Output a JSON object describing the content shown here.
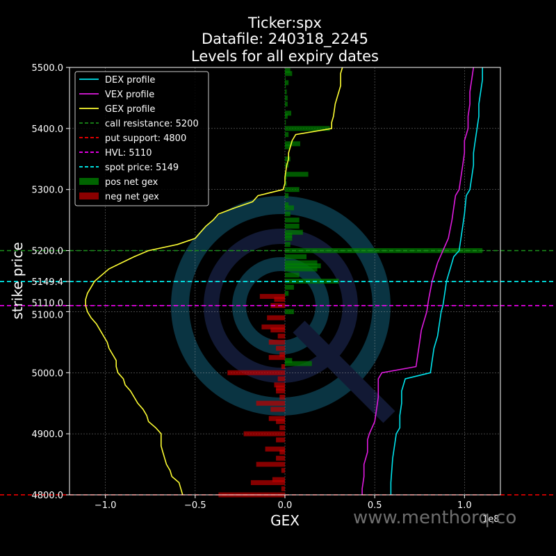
{
  "chart_data": {
    "type": "bar",
    "orientation": "horizontal",
    "title_lines": [
      "Ticker:spx",
      "Datafile: 240318_2245",
      "Levels for all expiry dates"
    ],
    "xlabel": "GEX",
    "ylabel": "strike price",
    "x_scale_note": "1e8",
    "xlim": [
      -1.2,
      1.2
    ],
    "ylim": [
      4800,
      5500
    ],
    "xticks": [
      -1.0,
      -0.5,
      0.0,
      0.5,
      1.0
    ],
    "xtick_labels": [
      "−1.0",
      "−0.5",
      "0.0",
      "0.5",
      "1.0"
    ],
    "yticks": [
      4800,
      4900,
      5000,
      5100,
      5110,
      5149.4,
      5200,
      5300,
      5400,
      5500
    ],
    "ytick_labels": [
      "4800.0",
      "4900.0",
      "5000.0",
      "5100.0",
      "5110.0",
      "5149.4",
      "5200.0",
      "5300.0",
      "5400.0",
      "5500.0"
    ],
    "grid": true,
    "legend_position": "upper-left",
    "colors": {
      "dex": "#00e5ee",
      "vex": "#e01be0",
      "gex": "#ffff33",
      "call_resistance": "#1a8c1a",
      "put_support": "#ff0000",
      "hvl": "#ff00ff",
      "spot": "#00ffff",
      "pos": "#006400",
      "neg": "#8b0000"
    },
    "levels": [
      {
        "name": "call resistance",
        "value": 5200,
        "legend": "call resistance: 5200",
        "color_key": "call_resistance"
      },
      {
        "name": "put support",
        "value": 4800,
        "legend": "put support: 4800",
        "color_key": "put_support"
      },
      {
        "name": "HVL",
        "value": 5110,
        "legend": "HVL: 5110",
        "color_key": "hvl"
      },
      {
        "name": "spot price",
        "value": 5149.4,
        "legend": "spot price: 5149",
        "color_key": "spot"
      }
    ],
    "legend_entries": [
      {
        "label": "DEX profile",
        "kind": "line",
        "color_key": "dex"
      },
      {
        "label": "VEX profile",
        "kind": "line",
        "color_key": "vex"
      },
      {
        "label": "GEX profile",
        "kind": "line",
        "color_key": "gex"
      },
      {
        "label": "call resistance: 5200",
        "kind": "dash",
        "color_key": "call_resistance"
      },
      {
        "label": "put support: 4800",
        "kind": "dash",
        "color_key": "put_support"
      },
      {
        "label": "HVL: 5110",
        "kind": "dash",
        "color_key": "hvl"
      },
      {
        "label": "spot price: 5149",
        "kind": "dash",
        "color_key": "spot"
      },
      {
        "label": "pos net gex",
        "kind": "patch",
        "color_key": "pos"
      },
      {
        "label": "neg net gex",
        "kind": "patch",
        "color_key": "neg"
      }
    ],
    "series": [
      {
        "name": "GEX profile",
        "color_key": "gex",
        "points": [
          [
            -0.57,
            4800
          ],
          [
            -0.58,
            4810
          ],
          [
            -0.59,
            4820
          ],
          [
            -0.63,
            4830
          ],
          [
            -0.64,
            4840
          ],
          [
            -0.66,
            4850
          ],
          [
            -0.67,
            4860
          ],
          [
            -0.68,
            4870
          ],
          [
            -0.69,
            4880
          ],
          [
            -0.69,
            4890
          ],
          [
            -0.69,
            4900
          ],
          [
            -0.72,
            4910
          ],
          [
            -0.76,
            4920
          ],
          [
            -0.77,
            4930
          ],
          [
            -0.79,
            4940
          ],
          [
            -0.82,
            4950
          ],
          [
            -0.84,
            4960
          ],
          [
            -0.86,
            4970
          ],
          [
            -0.89,
            4980
          ],
          [
            -0.9,
            4990
          ],
          [
            -0.93,
            5000
          ],
          [
            -0.94,
            5010
          ],
          [
            -0.94,
            5020
          ],
          [
            -0.96,
            5030
          ],
          [
            -0.98,
            5040
          ],
          [
            -0.99,
            5050
          ],
          [
            -1.01,
            5060
          ],
          [
            -1.03,
            5070
          ],
          [
            -1.05,
            5080
          ],
          [
            -1.08,
            5090
          ],
          [
            -1.1,
            5100
          ],
          [
            -1.11,
            5110
          ],
          [
            -1.11,
            5120
          ],
          [
            -1.1,
            5130
          ],
          [
            -1.08,
            5140
          ],
          [
            -1.06,
            5150
          ],
          [
            -1.02,
            5160
          ],
          [
            -0.98,
            5170
          ],
          [
            -0.91,
            5180
          ],
          [
            -0.84,
            5190
          ],
          [
            -0.76,
            5200
          ],
          [
            -0.6,
            5210
          ],
          [
            -0.5,
            5220
          ],
          [
            -0.44,
            5240
          ],
          [
            -0.4,
            5250
          ],
          [
            -0.37,
            5260
          ],
          [
            -0.28,
            5270
          ],
          [
            -0.18,
            5280
          ],
          [
            -0.15,
            5290
          ],
          [
            -0.01,
            5300
          ],
          [
            0.0,
            5310
          ],
          [
            0.0,
            5320
          ],
          [
            0.01,
            5340
          ],
          [
            0.02,
            5350
          ],
          [
            0.02,
            5360
          ],
          [
            0.03,
            5370
          ],
          [
            0.04,
            5380
          ],
          [
            0.06,
            5390
          ],
          [
            0.26,
            5400
          ],
          [
            0.26,
            5410
          ],
          [
            0.27,
            5420
          ],
          [
            0.28,
            5440
          ],
          [
            0.29,
            5450
          ],
          [
            0.3,
            5460
          ],
          [
            0.31,
            5470
          ],
          [
            0.31,
            5480
          ],
          [
            0.31,
            5490
          ],
          [
            0.32,
            5500
          ]
        ]
      },
      {
        "name": "VEX profile",
        "color_key": "vex",
        "points": [
          [
            0.43,
            4800
          ],
          [
            0.43,
            4810
          ],
          [
            0.44,
            4830
          ],
          [
            0.44,
            4850
          ],
          [
            0.45,
            4860
          ],
          [
            0.46,
            4870
          ],
          [
            0.46,
            4890
          ],
          [
            0.47,
            4900
          ],
          [
            0.5,
            4920
          ],
          [
            0.51,
            4940
          ],
          [
            0.52,
            4960
          ],
          [
            0.52,
            4990
          ],
          [
            0.54,
            5000
          ],
          [
            0.73,
            5010
          ],
          [
            0.74,
            5030
          ],
          [
            0.75,
            5050
          ],
          [
            0.76,
            5070
          ],
          [
            0.77,
            5080
          ],
          [
            0.78,
            5090
          ],
          [
            0.79,
            5100
          ],
          [
            0.8,
            5120
          ],
          [
            0.82,
            5150
          ],
          [
            0.85,
            5180
          ],
          [
            0.88,
            5200
          ],
          [
            0.91,
            5220
          ],
          [
            0.93,
            5250
          ],
          [
            0.94,
            5270
          ],
          [
            0.95,
            5290
          ],
          [
            0.97,
            5300
          ],
          [
            0.98,
            5320
          ],
          [
            0.99,
            5340
          ],
          [
            1.0,
            5360
          ],
          [
            1.0,
            5380
          ],
          [
            1.02,
            5400
          ],
          [
            1.02,
            5420
          ],
          [
            1.03,
            5440
          ],
          [
            1.03,
            5460
          ],
          [
            1.04,
            5480
          ],
          [
            1.05,
            5500
          ]
        ]
      },
      {
        "name": "DEX profile",
        "color_key": "dex",
        "points": [
          [
            0.59,
            4800
          ],
          [
            0.59,
            4820
          ],
          [
            0.6,
            4860
          ],
          [
            0.61,
            4880
          ],
          [
            0.62,
            4900
          ],
          [
            0.64,
            4910
          ],
          [
            0.64,
            4930
          ],
          [
            0.65,
            4950
          ],
          [
            0.65,
            4970
          ],
          [
            0.66,
            4980
          ],
          [
            0.67,
            4990
          ],
          [
            0.81,
            5000
          ],
          [
            0.82,
            5020
          ],
          [
            0.83,
            5040
          ],
          [
            0.85,
            5060
          ],
          [
            0.86,
            5080
          ],
          [
            0.87,
            5100
          ],
          [
            0.88,
            5110
          ],
          [
            0.89,
            5130
          ],
          [
            0.9,
            5150
          ],
          [
            0.92,
            5170
          ],
          [
            0.94,
            5190
          ],
          [
            0.97,
            5200
          ],
          [
            0.98,
            5220
          ],
          [
            0.99,
            5240
          ],
          [
            1.0,
            5260
          ],
          [
            1.01,
            5290
          ],
          [
            1.03,
            5300
          ],
          [
            1.04,
            5320
          ],
          [
            1.05,
            5340
          ],
          [
            1.05,
            5360
          ],
          [
            1.06,
            5380
          ],
          [
            1.07,
            5400
          ],
          [
            1.08,
            5420
          ],
          [
            1.08,
            5440
          ],
          [
            1.09,
            5460
          ],
          [
            1.1,
            5480
          ],
          [
            1.1,
            5500
          ]
        ]
      }
    ],
    "bars": [
      {
        "strike": 5495,
        "value": 0.03
      },
      {
        "strike": 5490,
        "value": 0.04
      },
      {
        "strike": 5480,
        "value": 0.004
      },
      {
        "strike": 5475,
        "value": 0.02
      },
      {
        "strike": 5470,
        "value": 0.005
      },
      {
        "strike": 5460,
        "value": 0.01
      },
      {
        "strike": 5450,
        "value": 0.015
      },
      {
        "strike": 5440,
        "value": 0.015
      },
      {
        "strike": 5425,
        "value": 0.035
      },
      {
        "strike": 5420,
        "value": 0.015
      },
      {
        "strike": 5410,
        "value": 0.005
      },
      {
        "strike": 5400,
        "value": 0.25
      },
      {
        "strike": 5390,
        "value": 0.02
      },
      {
        "strike": 5375,
        "value": 0.085
      },
      {
        "strike": 5370,
        "value": 0.03
      },
      {
        "strike": 5350,
        "value": 0.03
      },
      {
        "strike": 5340,
        "value": 0.02
      },
      {
        "strike": 5325,
        "value": 0.13
      },
      {
        "strike": 5320,
        "value": 0.01
      },
      {
        "strike": 5310,
        "value": 0.01
      },
      {
        "strike": 5300,
        "value": 0.08
      },
      {
        "strike": 5290,
        "value": 0.02
      },
      {
        "strike": 5275,
        "value": 0.02
      },
      {
        "strike": 5270,
        "value": 0.05
      },
      {
        "strike": 5260,
        "value": 0.03
      },
      {
        "strike": 5250,
        "value": 0.08
      },
      {
        "strike": 5240,
        "value": 0.08
      },
      {
        "strike": 5230,
        "value": 0.1
      },
      {
        "strike": 5225,
        "value": 0.04
      },
      {
        "strike": 5220,
        "value": 0.04
      },
      {
        "strike": 5210,
        "value": 0.03
      },
      {
        "strike": 5200,
        "value": 1.1
      },
      {
        "strike": 5190,
        "value": 0.12
      },
      {
        "strike": 5180,
        "value": 0.18
      },
      {
        "strike": 5175,
        "value": 0.2
      },
      {
        "strike": 5170,
        "value": 0.18
      },
      {
        "strike": 5160,
        "value": 0.08
      },
      {
        "strike": 5150,
        "value": 0.3
      },
      {
        "strike": 5140,
        "value": 0.05
      },
      {
        "strike": 5130,
        "value": 0.02
      },
      {
        "strike": 5125,
        "value": -0.14
      },
      {
        "strike": 5120,
        "value": -0.06
      },
      {
        "strike": 5110,
        "value": -0.08
      },
      {
        "strike": 5100,
        "value": 0.05
      },
      {
        "strike": 5090,
        "value": -0.1
      },
      {
        "strike": 5075,
        "value": -0.13
      },
      {
        "strike": 5070,
        "value": -0.08
      },
      {
        "strike": 5060,
        "value": -0.04
      },
      {
        "strike": 5050,
        "value": -0.09
      },
      {
        "strike": 5040,
        "value": -0.05
      },
      {
        "strike": 5030,
        "value": -0.03
      },
      {
        "strike": 5025,
        "value": -0.09
      },
      {
        "strike": 5020,
        "value": 0.04
      },
      {
        "strike": 5015,
        "value": 0.15
      },
      {
        "strike": 5010,
        "value": -0.02
      },
      {
        "strike": 5000,
        "value": -0.32
      },
      {
        "strike": 4990,
        "value": -0.04
      },
      {
        "strike": 4980,
        "value": -0.06
      },
      {
        "strike": 4975,
        "value": -0.05
      },
      {
        "strike": 4970,
        "value": -0.05
      },
      {
        "strike": 4960,
        "value": -0.03
      },
      {
        "strike": 4950,
        "value": -0.16
      },
      {
        "strike": 4940,
        "value": -0.08
      },
      {
        "strike": 4925,
        "value": -0.09
      },
      {
        "strike": 4920,
        "value": -0.05
      },
      {
        "strike": 4910,
        "value": -0.03
      },
      {
        "strike": 4900,
        "value": -0.23
      },
      {
        "strike": 4890,
        "value": -0.05
      },
      {
        "strike": 4875,
        "value": -0.11
      },
      {
        "strike": 4870,
        "value": -0.03
      },
      {
        "strike": 4860,
        "value": -0.05
      },
      {
        "strike": 4850,
        "value": -0.16
      },
      {
        "strike": 4840,
        "value": -0.02
      },
      {
        "strike": 4825,
        "value": -0.07
      },
      {
        "strike": 4820,
        "value": -0.19
      },
      {
        "strike": 4810,
        "value": -0.02
      },
      {
        "strike": 4800,
        "value": -0.37
      }
    ],
    "watermark": "www.menthorq.co"
  }
}
